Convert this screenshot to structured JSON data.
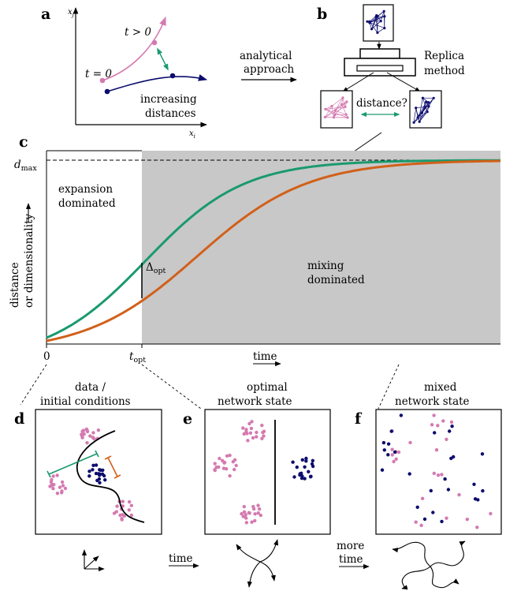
{
  "panels": {
    "a": "a",
    "b": "b",
    "c": "c",
    "d": "d",
    "e": "e",
    "f": "f"
  },
  "panel_a": {
    "y_axis": "x",
    "y_axis_sub": "j",
    "x_axis": "x",
    "x_axis_sub": "i",
    "t_pos": "t > 0",
    "t_zero": "t = 0",
    "caption_1": "increasing",
    "caption_2": "distances"
  },
  "arrow_ab": {
    "line1": "analytical",
    "line2": "approach"
  },
  "panel_b": {
    "method_1": "Replica",
    "method_2": "method",
    "question": "distance?"
  },
  "panel_c": {
    "dmax": "d",
    "dmax_sub": "max",
    "region_left_1": "expansion",
    "region_left_2": "dominated",
    "region_right_1": "mixing",
    "region_right_2": "dominated",
    "delta": "Δ",
    "delta_sub": "opt",
    "ylabel_1": "distance",
    "ylabel_2": "or dimensionality",
    "xtick_0": "0",
    "xtick_opt": "t",
    "xtick_opt_sub": "opt",
    "xlabel": "time"
  },
  "panel_d": {
    "title_1": "data /",
    "title_2": "initial conditions"
  },
  "panel_e": {
    "title_1": "optimal",
    "title_2": "network state"
  },
  "panel_f": {
    "title_1": "mixed",
    "title_2": "network state"
  },
  "bottom": {
    "time_1": "time",
    "more": "more",
    "time_2": "time"
  },
  "colors": {
    "green": "#1a9a6e",
    "orange": "#d2601a",
    "pink": "#d47ab0",
    "navy": "#0c0c6e",
    "shade": "#c8c8c8"
  }
}
